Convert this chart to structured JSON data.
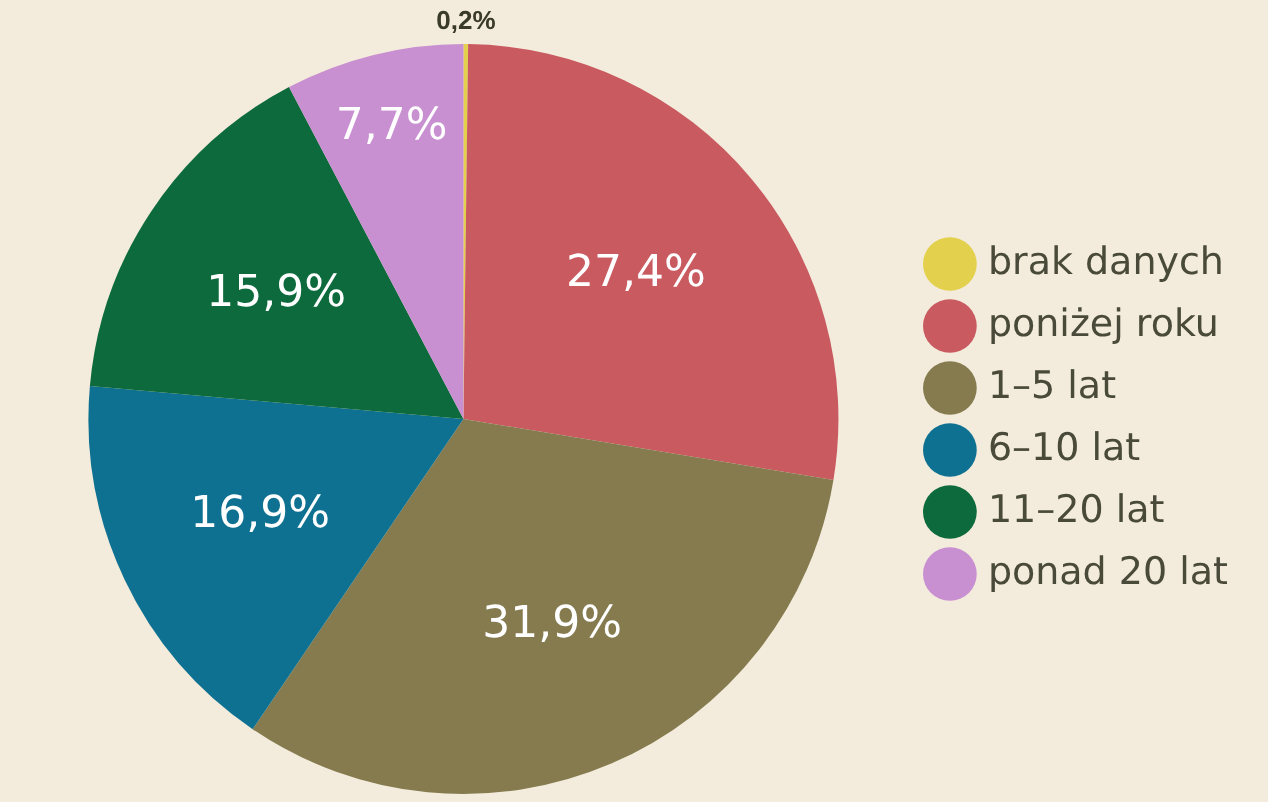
{
  "chart_data": {
    "type": "pie",
    "categories": [
      "brak danych",
      "poniżej roku",
      "1–5 lat",
      "6–10 lat",
      "11–20 lat",
      "ponad 20 lat"
    ],
    "values": [
      0.2,
      27.4,
      31.9,
      16.9,
      15.9,
      7.7
    ],
    "value_labels": [
      "0,2%",
      "27,4%",
      "31,9%",
      "16,9%",
      "15,9%",
      "7,7%"
    ],
    "colors": [
      "#e3d04c",
      "#c95a60",
      "#857b4f",
      "#0f7191",
      "#0d6a3c",
      "#c88fd1"
    ],
    "legend": "right"
  }
}
